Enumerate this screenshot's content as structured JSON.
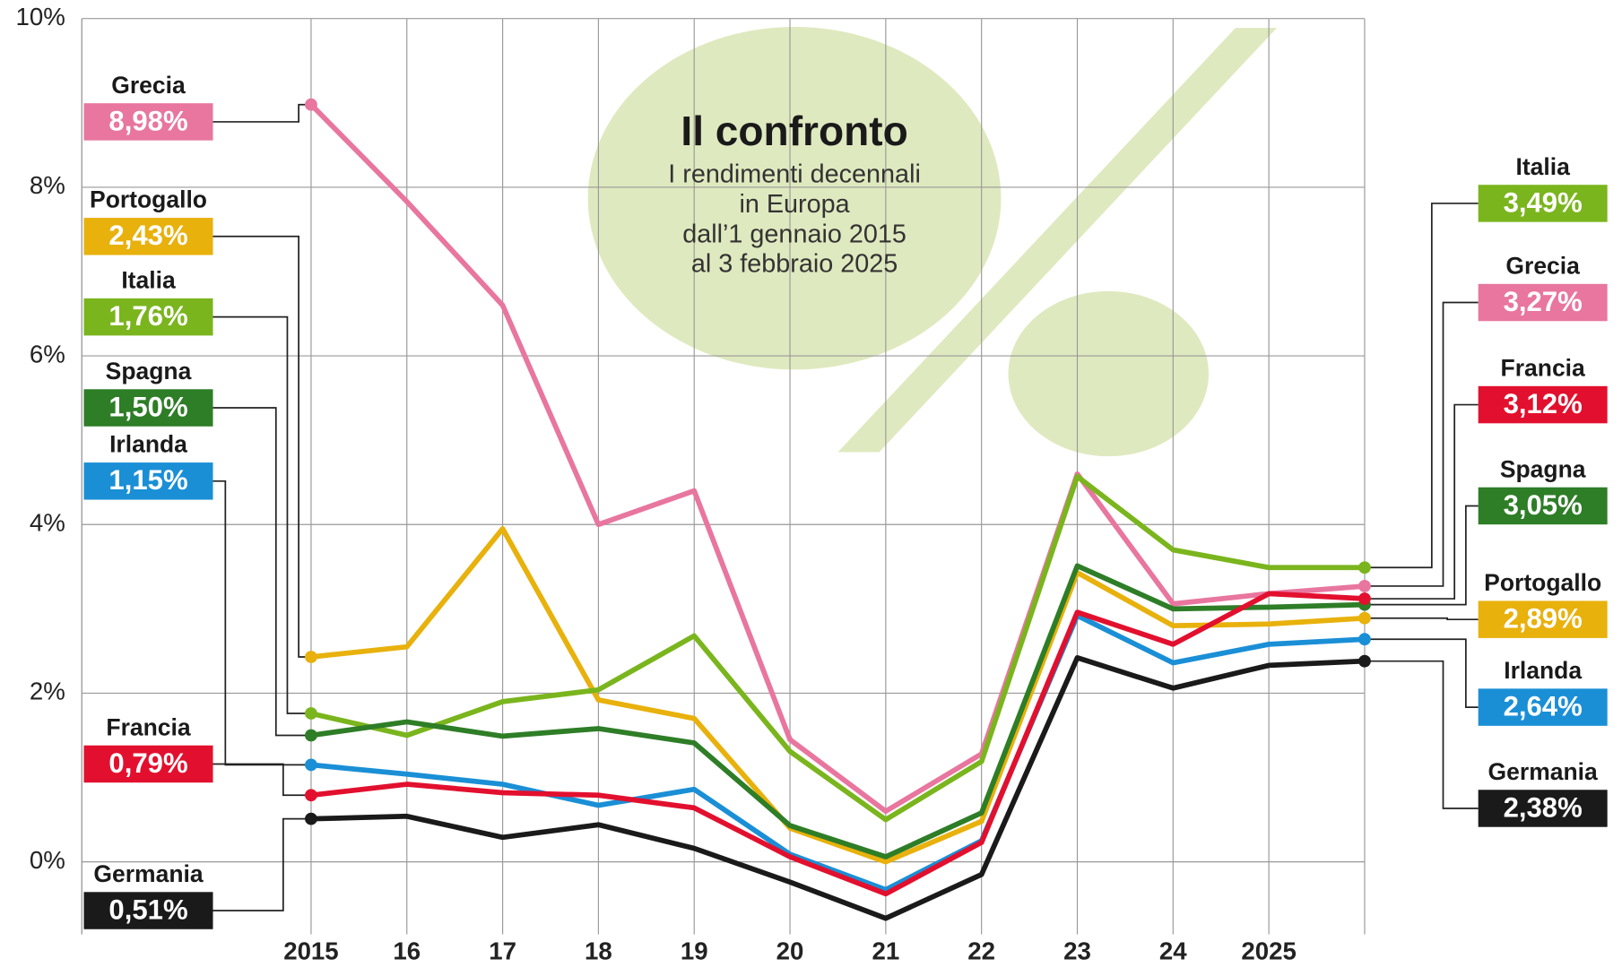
{
  "chart_data": {
    "type": "line",
    "title": "Il confronto",
    "subtitle": [
      "I rendimenti decennali",
      "in Europa",
      "dall’1 gennaio 2015",
      "al 3 febbraio 2025"
    ],
    "categories": [
      "2015",
      "16",
      "17",
      "18",
      "19",
      "20",
      "21",
      "22",
      "23",
      "24",
      "2025",
      null
    ],
    "ylim": [
      -0.86,
      10
    ],
    "yticks": [
      {
        "value": 0,
        "label": "0%"
      },
      {
        "value": 2,
        "label": "2%"
      },
      {
        "value": 4,
        "label": "4%"
      },
      {
        "value": 6,
        "label": "6%"
      },
      {
        "value": 8,
        "label": "8%"
      },
      {
        "value": 10,
        "label": "10%"
      }
    ],
    "grid": true,
    "series": [
      {
        "name": "Grecia",
        "color": "#e8769f",
        "values": [
          8.98,
          7.83,
          6.6,
          4.0,
          4.4,
          1.45,
          0.6,
          1.28,
          4.6,
          3.06,
          3.18,
          3.27
        ],
        "value_labels": [
          "8,98%",
          null,
          null,
          null,
          null,
          null,
          null,
          null,
          null,
          null,
          null,
          "3,27%"
        ]
      },
      {
        "name": "Portogallo",
        "color": "#e8b10c",
        "values": [
          2.43,
          2.55,
          3.95,
          1.92,
          1.7,
          0.4,
          0.0,
          0.48,
          3.43,
          2.8,
          2.82,
          2.89
        ],
        "value_labels": [
          "2,43%",
          null,
          null,
          null,
          null,
          null,
          null,
          null,
          null,
          null,
          null,
          "2,89%"
        ]
      },
      {
        "name": "Italia",
        "color": "#7ab51d",
        "values": [
          1.76,
          1.5,
          1.9,
          2.04,
          2.68,
          1.31,
          0.5,
          1.19,
          4.57,
          3.7,
          3.49,
          3.49
        ],
        "value_labels": [
          "1,76%",
          null,
          null,
          null,
          null,
          null,
          null,
          null,
          null,
          null,
          null,
          "3,49%"
        ]
      },
      {
        "name": "Spagna",
        "color": "#2e7d27",
        "values": [
          1.5,
          1.66,
          1.49,
          1.58,
          1.41,
          0.43,
          0.06,
          0.58,
          3.51,
          3.0,
          3.02,
          3.05
        ],
        "value_labels": [
          "1,50%",
          null,
          null,
          null,
          null,
          null,
          null,
          null,
          null,
          null,
          null,
          "3,05%"
        ]
      },
      {
        "name": "Irlanda",
        "color": "#1a8fd6",
        "values": [
          1.15,
          1.04,
          0.92,
          0.67,
          0.86,
          0.09,
          -0.33,
          0.25,
          2.92,
          2.36,
          2.58,
          2.64
        ],
        "value_labels": [
          "1,15%",
          null,
          null,
          null,
          null,
          null,
          null,
          null,
          null,
          null,
          null,
          "2,64%"
        ]
      },
      {
        "name": "Francia",
        "color": "#e2102e",
        "values": [
          0.79,
          0.92,
          0.82,
          0.79,
          0.64,
          0.06,
          -0.38,
          0.23,
          2.96,
          2.58,
          3.18,
          3.12
        ],
        "value_labels": [
          "0,79%",
          null,
          null,
          null,
          null,
          null,
          null,
          null,
          null,
          null,
          null,
          "3,12%"
        ]
      },
      {
        "name": "Germania",
        "color": "#1a1a1a",
        "values": [
          0.51,
          0.54,
          0.29,
          0.44,
          0.16,
          -0.24,
          -0.67,
          -0.15,
          2.42,
          2.06,
          2.33,
          2.38
        ],
        "value_labels": [
          "0,51%",
          null,
          null,
          null,
          null,
          null,
          null,
          null,
          null,
          null,
          null,
          "2,38%"
        ]
      }
    ]
  }
}
